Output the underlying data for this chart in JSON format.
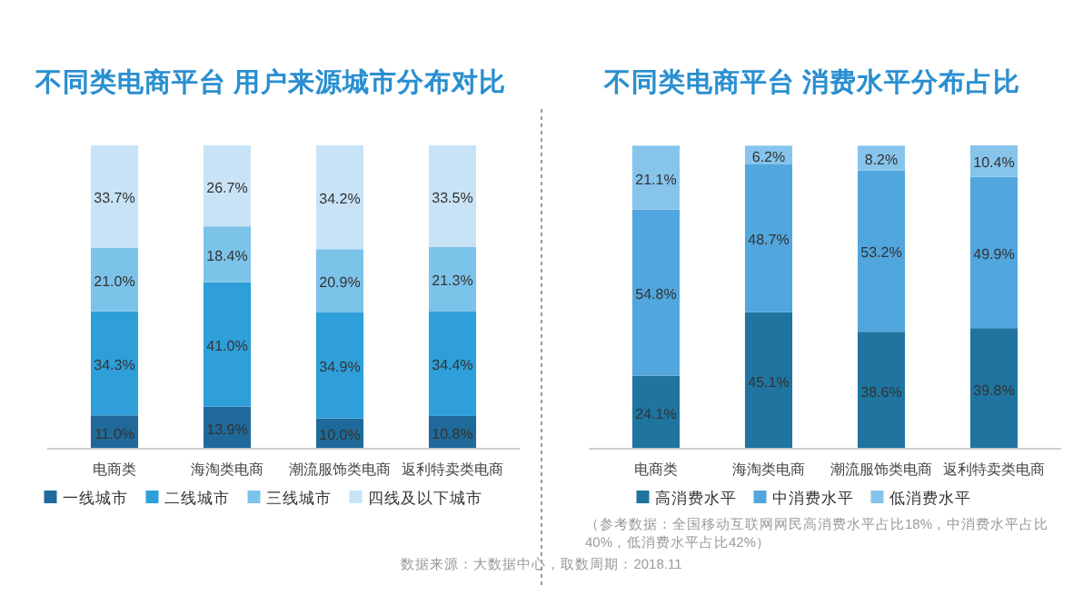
{
  "chart_data": [
    {
      "type": "bar",
      "stacked": true,
      "title": "不同类电商平台 用户来源城市分布对比",
      "categories": [
        "电商类",
        "海淘类电商",
        "潮流服饰类电商",
        "返利特卖类电商"
      ],
      "legend": "bottom",
      "series": [
        {
          "name": "一线城市",
          "color": "#1f6a9a",
          "values": [
            11.0,
            13.9,
            10.0,
            10.8
          ],
          "value_labels": [
            "11.0%",
            "13.9%",
            "10.0%",
            "10.8%"
          ]
        },
        {
          "name": "二线城市",
          "color": "#2e9fd8",
          "values": [
            34.3,
            41.0,
            34.9,
            34.4
          ],
          "value_labels": [
            "34.3%",
            "41.0%",
            "34.9%",
            "34.4%"
          ]
        },
        {
          "name": "三线城市",
          "color": "#7cc3ea",
          "values": [
            21.0,
            18.4,
            20.9,
            21.3
          ],
          "value_labels": [
            "21.0%",
            "18.4%",
            "20.9%",
            "21.3%"
          ]
        },
        {
          "name": "四线及以下城市",
          "color": "#c8e3f6",
          "values": [
            33.7,
            26.7,
            34.2,
            33.5
          ],
          "value_labels": [
            "33.7%",
            "26.7%",
            "34.2%",
            "33.5%"
          ]
        }
      ],
      "annotations": [
        "数据来源：大数据中心，取数周期：2018.11"
      ]
    },
    {
      "type": "bar",
      "stacked": true,
      "title": "不同类电商平台 消费水平分布占比",
      "categories": [
        "电商类",
        "海淘类电商",
        "潮流服饰类电商",
        "返利特卖类电商"
      ],
      "legend": "bottom",
      "series": [
        {
          "name": "高消费水平",
          "color": "#1f74a0",
          "values": [
            24.1,
            45.1,
            38.6,
            39.8
          ],
          "value_labels": [
            "24.1%",
            "45.1%",
            "38.6%",
            "39.8%"
          ]
        },
        {
          "name": "中消费水平",
          "color": "#52a6de",
          "values": [
            54.8,
            48.7,
            53.2,
            49.9
          ],
          "value_labels": [
            "54.8%",
            "48.7%",
            "53.2%",
            "49.9%"
          ]
        },
        {
          "name": "低消费水平",
          "color": "#86c4ec",
          "values": [
            21.1,
            6.2,
            8.2,
            10.4
          ],
          "value_labels": [
            "21.1%",
            "6.2%",
            "8.2%",
            "10.4%"
          ]
        }
      ],
      "annotations": [
        "（参考数据：全国移动互联网网民高消费水平占比18%，中消费水平占比40%，低消费水平占比42%）"
      ]
    }
  ]
}
